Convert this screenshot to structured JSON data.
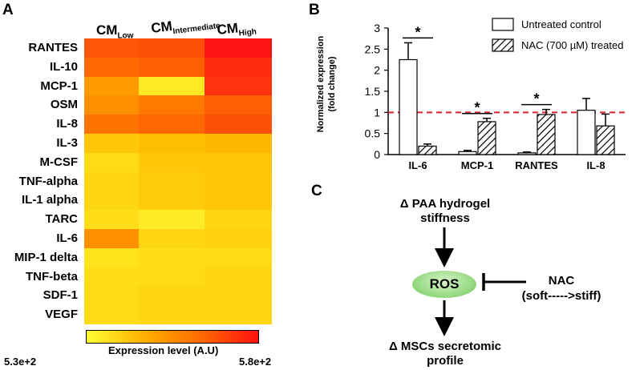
{
  "panels": {
    "a": "A",
    "b": "B",
    "c": "C"
  },
  "heatmap": {
    "columns": [
      {
        "main": "CM",
        "sub": "Low"
      },
      {
        "main": "CM",
        "sub": "Intermediate"
      },
      {
        "main": "CM",
        "sub": "High"
      }
    ],
    "rows": [
      "RANTES",
      "IL-10",
      "MCP-1",
      "OSM",
      "IL-8",
      "IL-3",
      "M-CSF",
      "TNF-alpha",
      "IL-1 alpha",
      "TARC",
      "IL-6",
      "MIP-1 delta",
      "TNF-beta",
      "SDF-1",
      "VEGF"
    ],
    "values": [
      [
        0.78,
        0.8,
        1.0
      ],
      [
        0.72,
        0.75,
        0.92
      ],
      [
        0.5,
        0.12,
        0.9
      ],
      [
        0.55,
        0.65,
        0.75
      ],
      [
        0.68,
        0.72,
        0.8
      ],
      [
        0.3,
        0.35,
        0.38
      ],
      [
        0.2,
        0.3,
        0.32
      ],
      [
        0.22,
        0.28,
        0.3
      ],
      [
        0.22,
        0.28,
        0.3
      ],
      [
        0.18,
        0.1,
        0.22
      ],
      [
        0.55,
        0.22,
        0.25
      ],
      [
        0.15,
        0.18,
        0.2
      ],
      [
        0.18,
        0.2,
        0.22
      ],
      [
        0.2,
        0.22,
        0.22
      ],
      [
        0.2,
        0.22,
        0.22
      ]
    ],
    "colorbar_label": "Expression level (A.U)",
    "colorbar_min": "5.3e+2",
    "colorbar_max": "5.8e+2"
  },
  "chart_data": {
    "type": "bar",
    "categories": [
      "IL-6",
      "MCP-1",
      "RANTES",
      "IL-8"
    ],
    "series": [
      {
        "name": "Untreated control",
        "values": [
          2.25,
          0.07,
          0.04,
          1.05
        ],
        "errors": [
          0.4,
          0.03,
          0.02,
          0.28
        ]
      },
      {
        "name": "NAC (700 µM) treated",
        "values": [
          0.2,
          0.78,
          0.95,
          0.68
        ],
        "errors": [
          0.05,
          0.08,
          0.12,
          0.28
        ]
      }
    ],
    "ylabel_line1": "Normalized expression",
    "ylabel_line2": "(fold change)",
    "ylim": [
      0,
      3
    ],
    "yticks": [
      "0",
      "0.5",
      "1",
      "1.5",
      "2",
      "2.5",
      "3"
    ],
    "reference_line": 1,
    "significance": [
      "*",
      "*",
      "*"
    ]
  },
  "flow": {
    "top_line1": "Δ PAA hydrogel",
    "top_line2": "stiffness",
    "node": "ROS",
    "inhibitor_line1": "NAC",
    "inhibitor_line2": "(soft----->stiff)",
    "bottom_line1": "Δ MSCs secretomic",
    "bottom_line2": "profile"
  }
}
